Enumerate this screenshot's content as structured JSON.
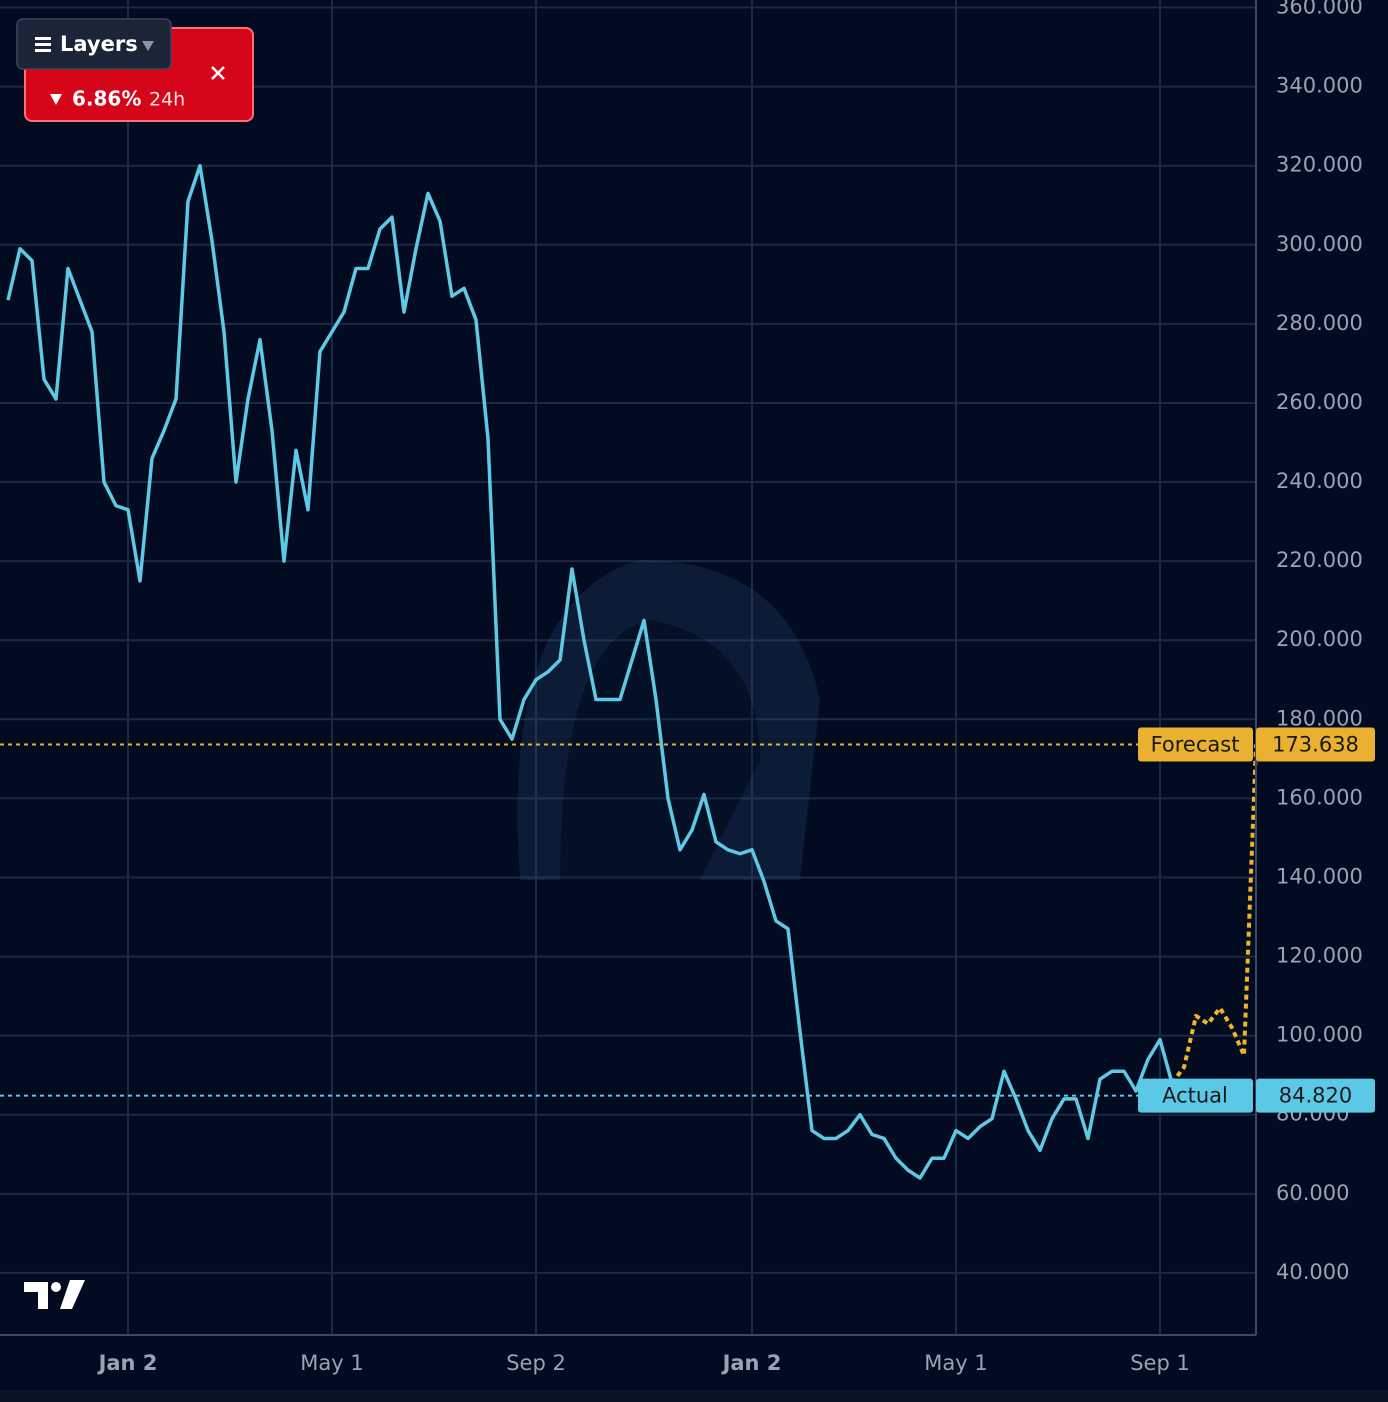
{
  "chart_data": {
    "type": "line",
    "categories": [
      null,
      null,
      null,
      null,
      null,
      null,
      null,
      null,
      null,
      null,
      "Jan 2",
      null,
      null,
      null,
      null,
      null,
      null,
      null,
      null,
      null,
      null,
      null,
      null,
      null,
      null,
      null,
      null,
      "May 1",
      null,
      null,
      null,
      null,
      null,
      null,
      null,
      null,
      null,
      null,
      null,
      null,
      null,
      null,
      null,
      null,
      "Sep 2",
      null,
      null,
      null,
      null,
      null,
      null,
      null,
      null,
      null,
      null,
      null,
      null,
      null,
      null,
      null,
      null,
      null,
      "Jan 2",
      null,
      null,
      null,
      null,
      null,
      null,
      null,
      null,
      null,
      null,
      null,
      null,
      null,
      null,
      null,
      null,
      "May 1",
      null,
      null,
      null,
      null,
      null,
      null,
      null,
      null,
      null,
      null,
      null,
      null,
      null,
      null,
      null,
      null,
      "Sep 1",
      null,
      null,
      null,
      null,
      null,
      null,
      null,
      null
    ],
    "series": [
      {
        "color": "#5ec8e5",
        "values": [
          286,
          299,
          296,
          266,
          261,
          294,
          286,
          278,
          240,
          234,
          233,
          215,
          246,
          253,
          261,
          311,
          320,
          301,
          278,
          240,
          261,
          276,
          253,
          220,
          248,
          233,
          273,
          278,
          283,
          294,
          294,
          304,
          307,
          283,
          299,
          313,
          306,
          287,
          289,
          281,
          251,
          180,
          175,
          185,
          190,
          192,
          195,
          218,
          200,
          185,
          185,
          185,
          195,
          205,
          185,
          160,
          147,
          152,
          161,
          149,
          147,
          146,
          147,
          139,
          129,
          127,
          101,
          76,
          74,
          74,
          76,
          80,
          75,
          74,
          69,
          66,
          64,
          69,
          69,
          76,
          74,
          77,
          79,
          91,
          84,
          76,
          71,
          79,
          84,
          84,
          74,
          89,
          91,
          91,
          86,
          94,
          99,
          88,
          null,
          null,
          null,
          null,
          null,
          null,
          null
        ]
      },
      {
        "color": "#f0b429",
        "values": [
          null,
          null,
          null,
          null,
          null,
          null,
          null,
          null,
          null,
          null,
          null,
          null,
          null,
          null,
          null,
          null,
          null,
          null,
          null,
          null,
          null,
          null,
          null,
          null,
          null,
          null,
          null,
          null,
          null,
          null,
          null,
          null,
          null,
          null,
          null,
          null,
          null,
          null,
          null,
          null,
          null,
          null,
          null,
          null,
          null,
          null,
          null,
          null,
          null,
          null,
          null,
          null,
          null,
          null,
          null,
          null,
          null,
          null,
          null,
          null,
          null,
          null,
          null,
          null,
          null,
          null,
          null,
          null,
          null,
          null,
          null,
          null,
          null,
          null,
          null,
          null,
          null,
          null,
          null,
          null,
          null,
          null,
          null,
          null,
          null,
          null,
          null,
          null,
          null,
          null,
          null,
          null,
          null,
          null,
          null,
          null,
          null,
          88,
          92,
          105,
          103,
          107,
          102,
          95,
          173.638
        ]
      }
    ],
    "ylim": [
      24.3,
      361.9
    ],
    "yticks": [
      {
        "value": 40,
        "label": "40.000"
      },
      {
        "value": 60,
        "label": "60.000"
      },
      {
        "value": 80,
        "label": "80.000"
      },
      {
        "value": 100,
        "label": "100.000"
      },
      {
        "value": 120,
        "label": "120.000"
      },
      {
        "value": 140,
        "label": "140.000"
      },
      {
        "value": 160,
        "label": "160.000"
      },
      {
        "value": 180,
        "label": "180.000"
      },
      {
        "value": 200,
        "label": "200.000"
      },
      {
        "value": 220,
        "label": "220.000"
      },
      {
        "value": 240,
        "label": "240.000"
      },
      {
        "value": 260,
        "label": "260.000"
      },
      {
        "value": 280,
        "label": "280.000"
      },
      {
        "value": 300,
        "label": "300.000"
      },
      {
        "value": 320,
        "label": "320.000"
      },
      {
        "value": 340,
        "label": "340.000"
      },
      {
        "value": 360,
        "label": "360.000"
      }
    ],
    "grid": true,
    "price_lines": [
      {
        "name": "Forecast",
        "value": 173.638,
        "color": "#eab130"
      },
      {
        "name": "Actual",
        "value": 84.82,
        "value_label": "84.820",
        "color": "#5cc8e8"
      }
    ]
  },
  "overlay": {
    "change": "6.86%",
    "period": "24h",
    "layers_button": "Layers"
  }
}
